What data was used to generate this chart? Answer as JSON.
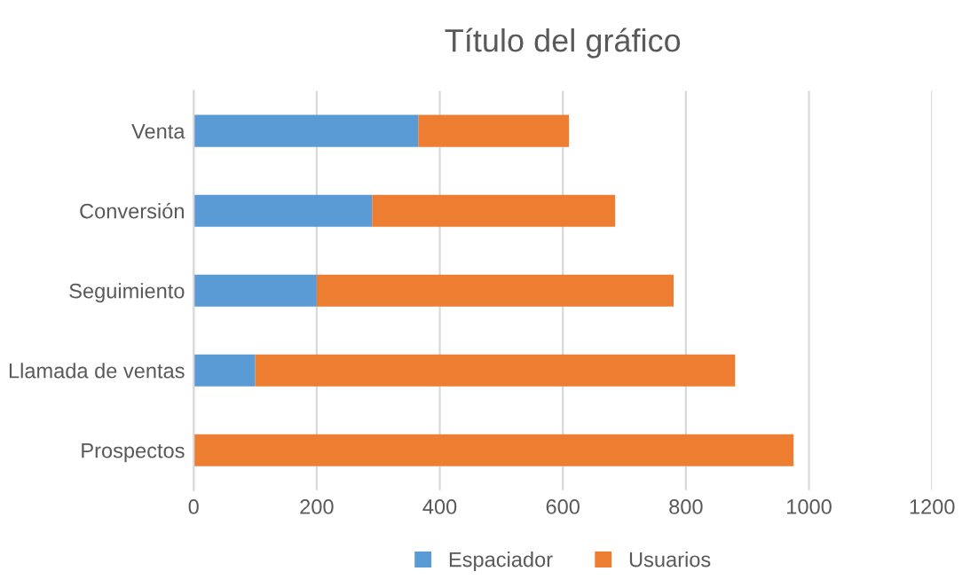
{
  "chart_data": {
    "type": "bar",
    "title": "Título del gráfico",
    "orientation": "horizontal",
    "stacked": true,
    "categories": [
      "Venta",
      "Conversión",
      "Seguimiento",
      "Llamada de ventas",
      "Prospectos"
    ],
    "series": [
      {
        "name": "Espaciador",
        "color": "#5b9bd5",
        "values": [
          365,
          290,
          200,
          100,
          0
        ]
      },
      {
        "name": "Usuarios",
        "color": "#ed7d31",
        "values": [
          245,
          395,
          580,
          780,
          975
        ]
      }
    ],
    "xlim": [
      0,
      1200
    ],
    "xticks": [
      0,
      200,
      400,
      600,
      800,
      1000,
      1200
    ],
    "grid": "x",
    "legend": "bottom"
  }
}
